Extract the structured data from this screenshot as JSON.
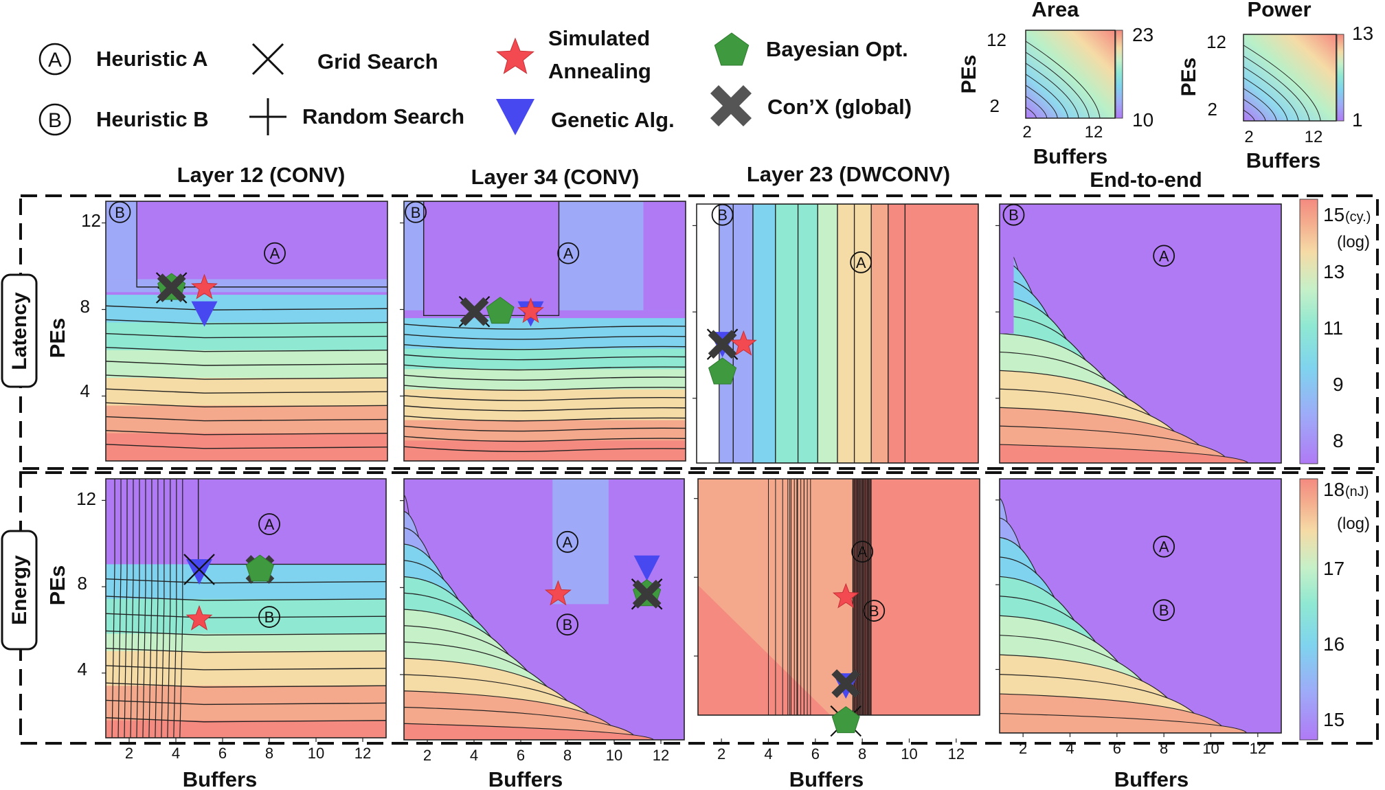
{
  "legend": {
    "items": [
      {
        "symbol": "circle-a",
        "label": "Heuristic A"
      },
      {
        "symbol": "circle-b",
        "label": "Heuristic B"
      },
      {
        "symbol": "x-mark",
        "label": "Grid Search"
      },
      {
        "symbol": "plus-mark",
        "label": "Random Search"
      },
      {
        "symbol": "red-star",
        "label_lines": [
          "Simulated",
          "Annealing"
        ]
      },
      {
        "symbol": "blue-triangle",
        "label": "Genetic Alg."
      },
      {
        "symbol": "green-pentagon",
        "label": "Bayesian Opt."
      },
      {
        "symbol": "black-cross",
        "label": "Con’X (global)"
      }
    ]
  },
  "insets": [
    {
      "title": "Area",
      "ylabel": "PEs",
      "xlabel": "Buffers",
      "yticks": [
        "12",
        "2"
      ],
      "xticks": [
        "2",
        "12"
      ],
      "cbar_max": "23",
      "cbar_min": "10"
    },
    {
      "title": "Power",
      "ylabel": "PEs",
      "xlabel": "Buffers",
      "yticks": [
        "12",
        "2"
      ],
      "xticks": [
        "2",
        "12"
      ],
      "cbar_max": "13",
      "cbar_min": "1"
    }
  ],
  "column_titles": [
    "Layer 12 (CONV)",
    "Layer 34 (CONV)",
    "Layer 23 (DWCONV)",
    "End-to-end"
  ],
  "row_labels": [
    "Latency",
    "Energy"
  ],
  "axis_labels": {
    "y": "PEs",
    "x": "Buffers"
  },
  "ticks": {
    "latency_y": [
      "12",
      "8",
      "4"
    ],
    "energy_y": [
      "12",
      "8",
      "4"
    ],
    "x": [
      "2",
      "4",
      "6",
      "8",
      "10",
      "12"
    ]
  },
  "colorbars": {
    "latency": {
      "ticks": [
        "15",
        "13",
        "11",
        "9",
        "8"
      ],
      "unit": "(cy.)",
      "scale": "(log)"
    },
    "energy": {
      "ticks": [
        "18",
        "17",
        "16",
        "15"
      ],
      "unit": "(nJ)",
      "scale": "(log)"
    }
  },
  "annotations": {
    "a": "A",
    "b": "B"
  },
  "chart_data": {
    "type": "heatmap",
    "subtype": "contour",
    "x_axis": {
      "label": "Buffers",
      "range": [
        1,
        13
      ]
    },
    "y_axis": {
      "label": "PEs",
      "range": [
        1,
        13
      ]
    },
    "palette": [
      "#b07af5",
      "#9eaaf8",
      "#7fd3ee",
      "#8fe8d2",
      "#c6f0c8",
      "#f5dba6",
      "#f4a98c",
      "#f48a80"
    ],
    "panels": [
      {
        "row": "Latency",
        "column": "Layer 12 (CONV)",
        "markers": [
          {
            "type": "x-mark",
            "x": 3.8,
            "y": 9.0
          },
          {
            "type": "plus-mark",
            "x": 3.8,
            "y": 9.0
          },
          {
            "type": "green-pentagon",
            "x": 3.8,
            "y": 9.0
          },
          {
            "type": "black-cross",
            "x": 3.8,
            "y": 9.0
          },
          {
            "type": "red-star",
            "x": 5.2,
            "y": 9.0
          },
          {
            "type": "blue-triangle",
            "x": 5.2,
            "y": 7.9
          }
        ],
        "heuristic_a": {
          "x": 8.2,
          "y": 10.6
        },
        "heuristic_b": {
          "x": 1.6,
          "y": 12.5
        }
      },
      {
        "row": "Latency",
        "column": "Layer 34 (CONV)",
        "markers": [
          {
            "type": "x-mark",
            "x": 4.0,
            "y": 7.9
          },
          {
            "type": "black-cross",
            "x": 4.0,
            "y": 7.9
          },
          {
            "type": "green-pentagon",
            "x": 5.1,
            "y": 7.9
          },
          {
            "type": "blue-triangle",
            "x": 6.4,
            "y": 7.9
          },
          {
            "type": "red-star",
            "x": 6.4,
            "y": 7.9
          }
        ],
        "heuristic_a": {
          "x": 8.0,
          "y": 10.6
        },
        "heuristic_b": {
          "x": 1.5,
          "y": 12.5
        }
      },
      {
        "row": "Latency",
        "column": "Layer 23 (DWCONV)",
        "markers": [
          {
            "type": "blue-triangle",
            "x": 2.1,
            "y": 6.6
          },
          {
            "type": "x-mark",
            "x": 2.1,
            "y": 6.5
          },
          {
            "type": "black-cross",
            "x": 2.1,
            "y": 6.5
          },
          {
            "type": "red-star",
            "x": 3.0,
            "y": 6.5
          },
          {
            "type": "green-pentagon",
            "x": 2.1,
            "y": 5.2
          }
        ],
        "heuristic_a": {
          "x": 8.0,
          "y": 10.3
        },
        "heuristic_b": {
          "x": 2.1,
          "y": 12.5
        }
      },
      {
        "row": "Latency",
        "column": "End-to-end",
        "markers": [],
        "heuristic_a": {
          "x": 8.0,
          "y": 10.6
        },
        "heuristic_b": {
          "x": 1.6,
          "y": 12.5
        }
      },
      {
        "row": "Energy",
        "column": "Layer 12 (CONV)",
        "markers": [
          {
            "type": "blue-triangle",
            "x": 5.0,
            "y": 8.8
          },
          {
            "type": "x-mark",
            "x": 5.0,
            "y": 8.8
          },
          {
            "type": "black-cross",
            "x": 7.6,
            "y": 8.8
          },
          {
            "type": "green-pentagon",
            "x": 7.6,
            "y": 8.8
          },
          {
            "type": "red-star",
            "x": 5.0,
            "y": 6.5
          }
        ],
        "heuristic_a": {
          "x": 8.0,
          "y": 10.9
        },
        "heuristic_b": {
          "x": 8.0,
          "y": 6.6
        }
      },
      {
        "row": "Energy",
        "column": "Layer 34 (CONV)",
        "markers": [
          {
            "type": "blue-triangle",
            "x": 11.4,
            "y": 9.0
          },
          {
            "type": "x-mark",
            "x": 11.4,
            "y": 7.7
          },
          {
            "type": "green-pentagon",
            "x": 11.4,
            "y": 7.7
          },
          {
            "type": "black-cross",
            "x": 11.4,
            "y": 7.7
          },
          {
            "type": "red-star",
            "x": 7.6,
            "y": 7.7
          }
        ],
        "heuristic_a": {
          "x": 8.0,
          "y": 10.1
        },
        "heuristic_b": {
          "x": 8.0,
          "y": 6.3
        }
      },
      {
        "row": "Energy",
        "column": "Layer 23 (DWCONV)",
        "markers": [
          {
            "type": "red-star",
            "x": 7.3,
            "y": 7.0
          },
          {
            "type": "blue-triangle",
            "x": 7.3,
            "y": 2.6
          },
          {
            "type": "black-cross",
            "x": 7.3,
            "y": 2.6
          },
          {
            "type": "x-mark",
            "x": 7.3,
            "y": 0.7
          },
          {
            "type": "green-pentagon",
            "x": 7.3,
            "y": 0.7
          }
        ],
        "heuristic_a": {
          "x": 8.0,
          "y": 9.3
        },
        "heuristic_b": {
          "x": 8.5,
          "y": 6.3
        }
      },
      {
        "row": "Energy",
        "column": "End-to-end",
        "markers": [],
        "heuristic_a": {
          "x": 8.0,
          "y": 9.8
        },
        "heuristic_b": {
          "x": 8.0,
          "y": 6.8
        }
      }
    ]
  }
}
